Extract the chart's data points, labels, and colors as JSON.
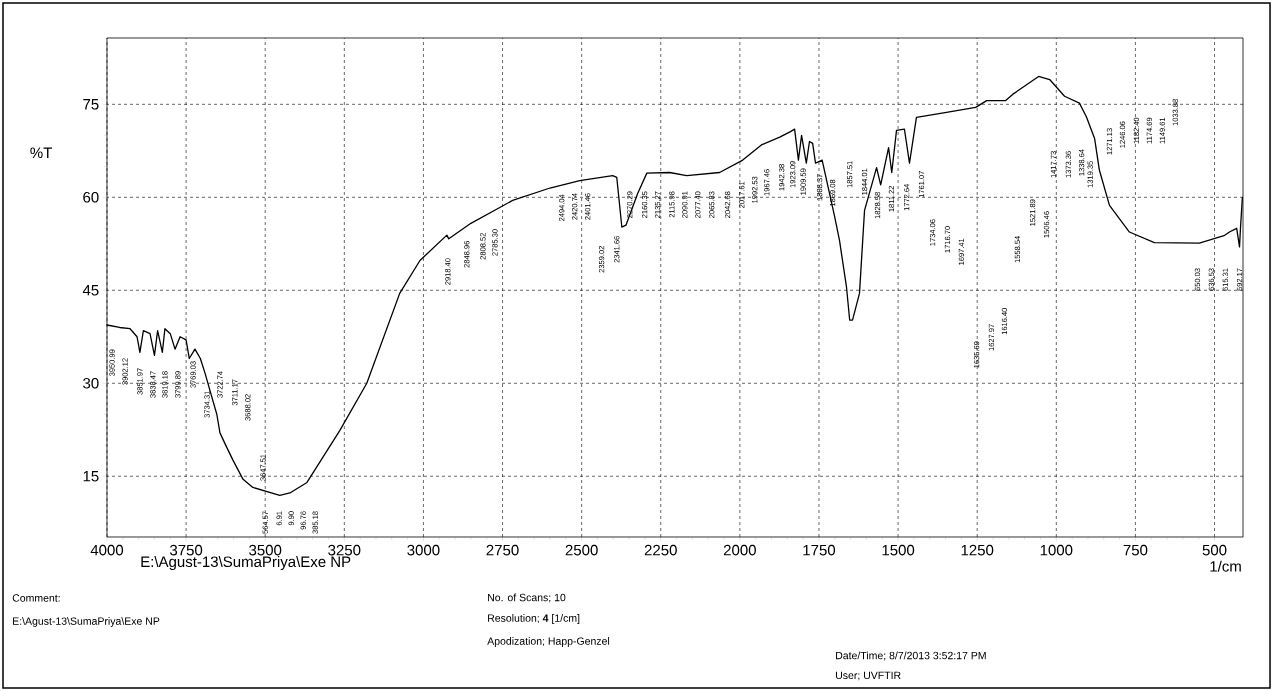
{
  "chart_data": {
    "type": "line",
    "xlabel": "1/cm",
    "ylabel": "%T",
    "color": "#000000",
    "grid": true,
    "xlim": [
      4000,
      410
    ],
    "ylim": [
      5.2,
      85.7
    ],
    "xticks": [
      4000,
      3750,
      3500,
      3250,
      3000,
      2750,
      2500,
      2250,
      2000,
      1750,
      1500,
      1250,
      1000,
      750,
      500
    ],
    "yticks": [
      15,
      30,
      45,
      60,
      75
    ],
    "x": [
      4000,
      3960,
      3927,
      3905,
      3896,
      3885,
      3864,
      3850,
      3840,
      3825,
      3817,
      3800,
      3785,
      3769,
      3750,
      3740,
      3722,
      3705,
      3690,
      3670,
      3653,
      3643,
      3620,
      3602,
      3570,
      3539,
      3454,
      3422,
      3368,
      3264,
      3179,
      3075,
      3011,
      2926,
      2920,
      2850,
      2718,
      2600,
      2506,
      2402,
      2389,
      2373,
      2360,
      2323,
      2294,
      2222,
      2168,
      2064,
      1991,
      1930,
      1874,
      1840,
      1827,
      1815,
      1805,
      1790,
      1780,
      1770,
      1761,
      1740,
      1701,
      1685,
      1663,
      1653,
      1644,
      1622,
      1606,
      1568,
      1555,
      1530,
      1520,
      1505,
      1480,
      1464,
      1442,
      1347,
      1255,
      1220,
      1160,
      1138,
      1056,
      1021,
      974,
      927,
      905,
      879,
      864,
      832,
      769,
      690,
      548,
      470,
      453,
      430,
      421,
      418,
      412
    ],
    "values": [
      39.4,
      39,
      38.8,
      37.5,
      35,
      38.5,
      38,
      34.5,
      38.5,
      35,
      38.8,
      38,
      35.5,
      37.5,
      37,
      34,
      35.5,
      34,
      31.6,
      28,
      25,
      22,
      19.5,
      17.6,
      14.5,
      13.2,
      11.9,
      12.3,
      14,
      22.4,
      30,
      44.5,
      49.8,
      53.9,
      53.3,
      55.8,
      59.5,
      61.5,
      62.7,
      63.5,
      63.2,
      55.2,
      55.5,
      60.6,
      63.9,
      64,
      63.5,
      64,
      66,
      68.5,
      69.7,
      70.6,
      71,
      66,
      70,
      65.5,
      69,
      68.7,
      65.5,
      66,
      57,
      53,
      45.5,
      40.2,
      40.2,
      44.5,
      57.9,
      64.8,
      62,
      68,
      64,
      70.8,
      71,
      65.5,
      72.9,
      73.7,
      74.5,
      75.6,
      75.6,
      76.6,
      79.5,
      79,
      76.3,
      75.2,
      73,
      69.5,
      64.4,
      58.7,
      54.4,
      52.7,
      52.6,
      53.8,
      54.4,
      55,
      52,
      55,
      60
    ],
    "annotations": [
      "E:\\Agust-13\\SumaPriya\\Exe NP",
      "Comment:",
      "E:\\Agust-13\\SumaPriya\\Exe NP",
      "No. of Scans; 10",
      "Resolution;  **4** [1/cm]",
      "Apodization;  Happ-Genzel",
      "Date/Time; 8/7/2013 3:52:17 PM",
      "User;      UVFTIR",
      "3950.99",
      "3902.12",
      "3851.97",
      "3838.47",
      "3819.18",
      "3799.89",
      "3769.03",
      "3734.31",
      "3722.74",
      "3711.17",
      "3688.02",
      "3647.51",
      "564.57",
      "6.91",
      "9.90",
      "96.76",
      "385.18",
      "2918.40",
      "2848.96",
      "2808.52",
      "2785.30",
      "2494.04",
      "2420.74",
      "2401.46",
      "2359.02",
      "2341.66",
      "2270.29",
      "2160.35",
      "2135.27",
      "2115.98",
      "2090.91",
      "2077.40",
      "2065.83",
      "2042.68",
      "2017.61",
      "1992.53",
      "1967.46",
      "1942.38",
      "1923.09",
      "1909.59",
      "1888.37",
      "1869.08",
      "1857.51",
      "1844.01",
      "1828.58",
      "1811.22",
      "1772.64",
      "1761.07",
      "1734.06",
      "1716.70",
      "1697.41",
      "1635.69",
      "1627.97",
      "1616.40",
      "1558.54",
      "1521.89",
      "1506.46",
      "1417.73",
      "1373.36",
      "1338.64",
      "1319.35",
      "1271.13",
      "1246.06",
      "1182.40",
      "1174.69",
      "1149.61",
      "1033.88",
      "650.03",
      "636.53",
      "615.31",
      "592.17"
    ]
  }
}
